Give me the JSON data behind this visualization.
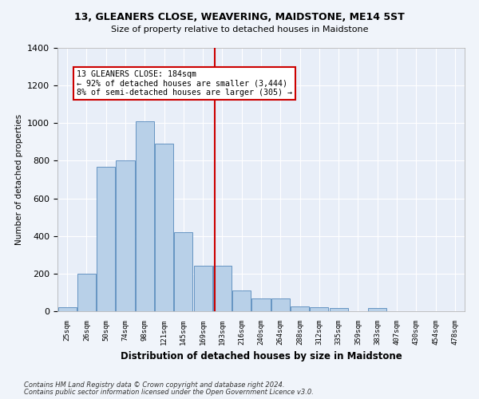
{
  "title": "13, GLEANERS CLOSE, WEAVERING, MAIDSTONE, ME14 5ST",
  "subtitle": "Size of property relative to detached houses in Maidstone",
  "xlabel": "Distribution of detached houses by size in Maidstone",
  "ylabel": "Number of detached properties",
  "bar_color": "#b8d0e8",
  "bar_edge_color": "#5588bb",
  "background_color": "#e8eef8",
  "grid_color": "#ffffff",
  "fig_background": "#f0f4fa",
  "categories": [
    "25sqm",
    "26sqm",
    "50sqm",
    "74sqm",
    "98sqm",
    "121sqm",
    "145sqm",
    "169sqm",
    "193sqm",
    "216sqm",
    "240sqm",
    "264sqm",
    "288sqm",
    "312sqm",
    "335sqm",
    "359sqm",
    "383sqm",
    "407sqm",
    "430sqm",
    "454sqm",
    "478sqm"
  ],
  "bar_heights": [
    20,
    200,
    770,
    800,
    1010,
    890,
    420,
    240,
    240,
    110,
    70,
    70,
    25,
    20,
    15,
    0,
    15,
    0,
    0,
    0,
    0
  ],
  "ylim": [
    0,
    1400
  ],
  "yticks": [
    0,
    200,
    400,
    600,
    800,
    1000,
    1200,
    1400
  ],
  "vline_x_index": 7.6,
  "vline_color": "#cc0000",
  "annotation_line1": "13 GLEANERS CLOSE: 184sqm",
  "annotation_line2": "← 92% of detached houses are smaller (3,444)",
  "annotation_line3": "8% of semi-detached houses are larger (305) →",
  "annotation_box_color": "#ffffff",
  "annotation_box_edge_color": "#cc0000",
  "footnote1": "Contains HM Land Registry data © Crown copyright and database right 2024.",
  "footnote2": "Contains public sector information licensed under the Open Government Licence v3.0."
}
